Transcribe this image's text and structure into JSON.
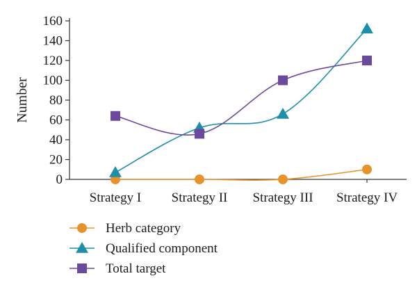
{
  "chart_data": {
    "type": "line",
    "title": "",
    "xlabel": "",
    "ylabel": "Number",
    "ylim": [
      0,
      160
    ],
    "yticks": [
      0,
      20,
      40,
      60,
      80,
      100,
      120,
      140,
      160
    ],
    "categories": [
      "Strategy I",
      "Strategy II",
      "Strategy III",
      "Strategy IV"
    ],
    "smooth": true,
    "grid": false,
    "legend_position": "bottom-left",
    "series": [
      {
        "name": "Herb category",
        "values": [
          0,
          0,
          0,
          10
        ],
        "color": "#E8922C",
        "marker": "circle"
      },
      {
        "name": "Qualified component",
        "values": [
          7,
          52,
          66,
          152
        ],
        "color": "#1E8FA8",
        "marker": "triangle"
      },
      {
        "name": "Total target",
        "values": [
          64,
          46,
          100,
          120
        ],
        "color": "#6B4A9E",
        "marker": "square"
      }
    ]
  }
}
